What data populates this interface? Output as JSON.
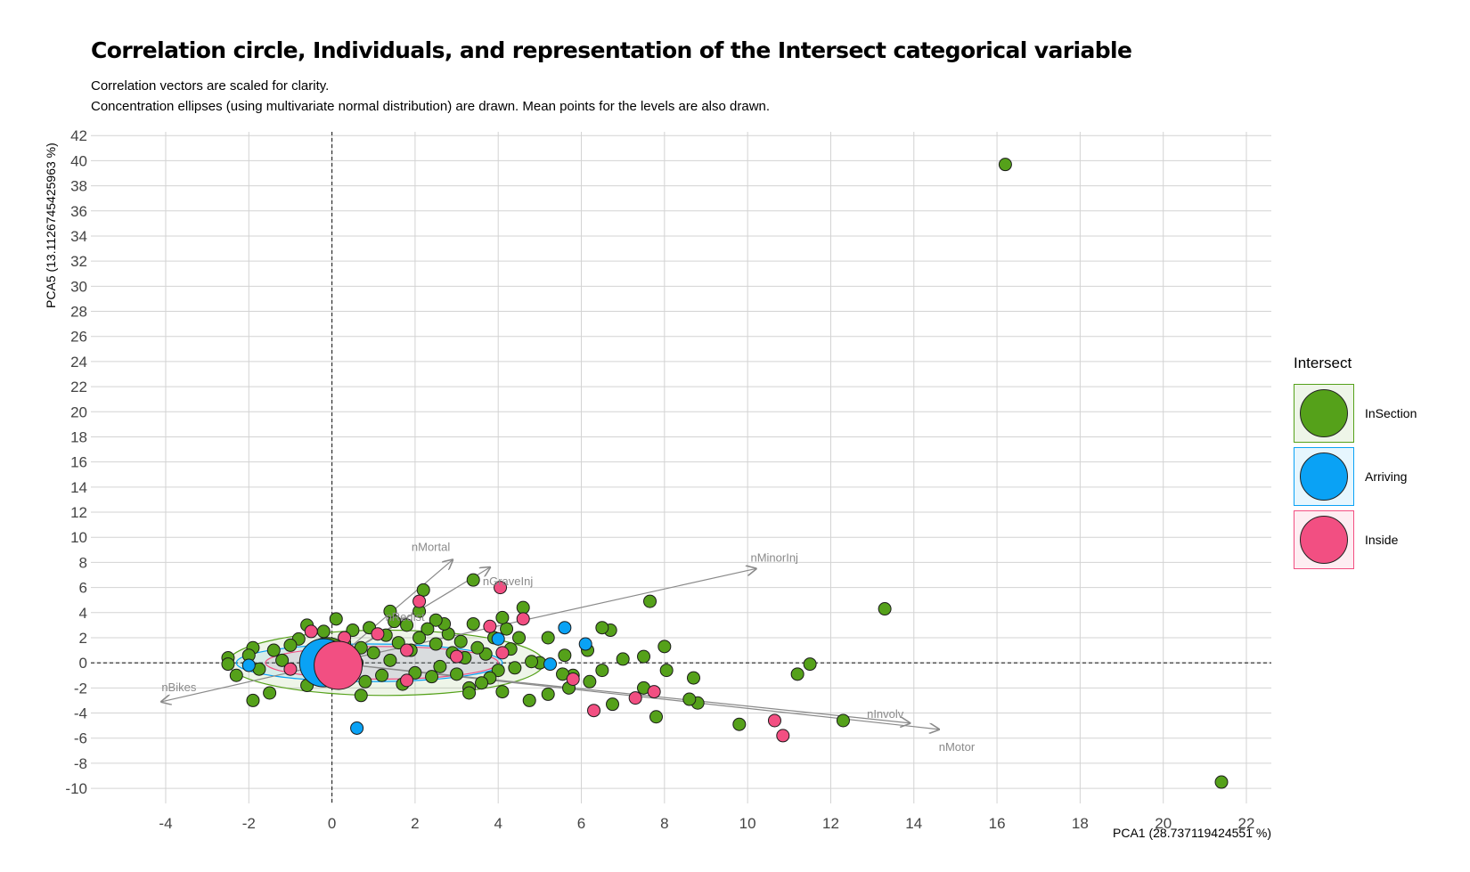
{
  "chart_data": {
    "type": "scatter",
    "title": "Correlation circle, Individuals, and representation of the Intersect categorical variable",
    "subtitle": [
      "Correlation vectors are scaled for clarity.",
      "Concentration ellipses (using multivariate normal distribution) are drawn. Mean points for the levels are also drawn."
    ],
    "xlabel": "PCA1 (28.737119424551 %)",
    "ylabel": "PCA5 (13.1126745425963 %)",
    "xlim": [
      -5.8,
      22.6
    ],
    "ylim": [
      -11.2,
      42.3
    ],
    "xticks": [
      -4,
      -2,
      0,
      2,
      4,
      6,
      8,
      10,
      12,
      14,
      16,
      18,
      20,
      22
    ],
    "yticks": [
      -10,
      -8,
      -6,
      -4,
      -2,
      0,
      2,
      4,
      6,
      8,
      10,
      12,
      14,
      16,
      18,
      20,
      22,
      24,
      26,
      28,
      30,
      32,
      34,
      36,
      38,
      40,
      42
    ],
    "grid": true,
    "reference_lines": {
      "x": 0,
      "y": 0,
      "style": "dashed"
    },
    "legend": {
      "title": "Intersect",
      "position": "right",
      "entries": [
        {
          "label": "InSection",
          "color": "#55a11a"
        },
        {
          "label": "Arriving",
          "color": "#0aa2f5"
        },
        {
          "label": "Inside",
          "color": "#f24f82"
        }
      ]
    },
    "variables": [
      {
        "name": "nBikes",
        "x": -4.1,
        "y": -3.1
      },
      {
        "name": "nMortal",
        "x": 2.9,
        "y": 8.2
      },
      {
        "name": "nGraveInj",
        "x": 3.8,
        "y": 7.6
      },
      {
        "name": "nRedist",
        "x": 1.8,
        "y": 3.5
      },
      {
        "name": "nMinorInj",
        "x": 10.2,
        "y": 7.5
      },
      {
        "name": "nInvolv",
        "x": 13.9,
        "y": -4.8
      },
      {
        "name": "nMotor",
        "x": 14.6,
        "y": -5.3
      }
    ],
    "ellipses": [
      {
        "group": "InSection",
        "cx": 1.3,
        "cy": 0.0,
        "rx": 3.8,
        "ry": 2.6
      },
      {
        "group": "Arriving",
        "cx": 0.9,
        "cy": 0.0,
        "rx": 3.2,
        "ry": 1.5
      },
      {
        "group": "Inside",
        "cx": 1.2,
        "cy": 0.0,
        "rx": 2.8,
        "ry": 1.3
      }
    ],
    "group_means": [
      {
        "group": "InSection",
        "x": -0.1,
        "y": 0.1
      },
      {
        "group": "Arriving",
        "x": -0.2,
        "y": 0.0
      },
      {
        "group": "Inside",
        "x": 0.15,
        "y": -0.2
      }
    ],
    "series": [
      {
        "name": "InSection",
        "color": "#55a11a",
        "points": [
          [
            16.2,
            39.7
          ],
          [
            21.4,
            -9.5
          ],
          [
            13.3,
            4.3
          ],
          [
            12.3,
            -4.6
          ],
          [
            11.5,
            -0.1
          ],
          [
            11.2,
            -0.9
          ],
          [
            9.8,
            -4.9
          ],
          [
            8.8,
            -3.2
          ],
          [
            8.7,
            -1.2
          ],
          [
            8.6,
            -2.9
          ],
          [
            8.0,
            1.3
          ],
          [
            8.05,
            -0.6
          ],
          [
            7.8,
            -4.3
          ],
          [
            7.65,
            4.9
          ],
          [
            7.5,
            -2.0
          ],
          [
            7.5,
            0.5
          ],
          [
            7.0,
            0.3
          ],
          [
            6.7,
            2.6
          ],
          [
            6.75,
            -3.3
          ],
          [
            6.5,
            2.8
          ],
          [
            6.5,
            -0.6
          ],
          [
            6.2,
            -1.5
          ],
          [
            6.15,
            1.0
          ],
          [
            5.8,
            -1.0
          ],
          [
            5.7,
            -2.0
          ],
          [
            5.55,
            -0.9
          ],
          [
            5.6,
            0.6
          ],
          [
            5.2,
            2.0
          ],
          [
            5.2,
            -2.5
          ],
          [
            5.0,
            0.0
          ],
          [
            4.8,
            0.1
          ],
          [
            4.75,
            -3.0
          ],
          [
            4.6,
            4.4
          ],
          [
            4.5,
            2.0
          ],
          [
            4.4,
            -0.4
          ],
          [
            4.3,
            1.1
          ],
          [
            4.2,
            2.7
          ],
          [
            4.1,
            3.6
          ],
          [
            4.1,
            -2.3
          ],
          [
            4.0,
            -0.6
          ],
          [
            3.9,
            2.0
          ],
          [
            3.8,
            -1.2
          ],
          [
            3.7,
            0.7
          ],
          [
            3.6,
            -1.6
          ],
          [
            3.5,
            1.2
          ],
          [
            3.4,
            6.6
          ],
          [
            3.4,
            3.1
          ],
          [
            3.3,
            -2.0
          ],
          [
            3.3,
            -2.4
          ],
          [
            3.2,
            0.4
          ],
          [
            3.1,
            1.7
          ],
          [
            3.0,
            -0.9
          ],
          [
            2.9,
            0.8
          ],
          [
            2.8,
            2.3
          ],
          [
            2.7,
            3.1
          ],
          [
            2.6,
            -0.3
          ],
          [
            2.5,
            3.4
          ],
          [
            2.5,
            1.5
          ],
          [
            2.4,
            -1.1
          ],
          [
            2.3,
            2.7
          ],
          [
            2.2,
            5.8
          ],
          [
            2.1,
            4.1
          ],
          [
            2.1,
            2.0
          ],
          [
            2.0,
            -0.8
          ],
          [
            1.9,
            1.0
          ],
          [
            1.8,
            3.0
          ],
          [
            1.7,
            -1.7
          ],
          [
            1.6,
            1.6
          ],
          [
            1.5,
            3.3
          ],
          [
            1.4,
            0.2
          ],
          [
            1.4,
            4.1
          ],
          [
            1.3,
            2.2
          ],
          [
            1.2,
            -1.0
          ],
          [
            1.0,
            0.8
          ],
          [
            0.9,
            2.8
          ],
          [
            0.8,
            -1.5
          ],
          [
            0.7,
            -2.6
          ],
          [
            0.7,
            1.2
          ],
          [
            0.6,
            0.0
          ],
          [
            0.5,
            2.6
          ],
          [
            0.4,
            -0.8
          ],
          [
            0.3,
            1.6
          ],
          [
            0.1,
            3.5
          ],
          [
            0.0,
            1.4
          ],
          [
            -0.2,
            2.5
          ],
          [
            -0.35,
            0.7
          ],
          [
            -0.6,
            3.0
          ],
          [
            -0.6,
            -1.8
          ],
          [
            -0.8,
            1.9
          ],
          [
            -1.0,
            1.4
          ],
          [
            -1.2,
            0.2
          ],
          [
            -1.4,
            1.0
          ],
          [
            -1.5,
            -2.4
          ],
          [
            -1.75,
            -0.5
          ],
          [
            -1.9,
            -3.0
          ],
          [
            -1.9,
            1.2
          ],
          [
            -2.0,
            0.6
          ],
          [
            -2.3,
            -1.0
          ],
          [
            -2.5,
            0.4
          ],
          [
            -2.5,
            -0.1
          ]
        ]
      },
      {
        "name": "Arriving",
        "color": "#0aa2f5",
        "points": [
          [
            0.6,
            -5.2
          ],
          [
            -2.0,
            -0.2
          ],
          [
            4.0,
            1.9
          ],
          [
            5.25,
            -0.1
          ],
          [
            5.6,
            2.8
          ],
          [
            6.1,
            1.5
          ]
        ]
      },
      {
        "name": "Inside",
        "color": "#f24f82",
        "points": [
          [
            10.85,
            -5.8
          ],
          [
            10.65,
            -4.6
          ],
          [
            7.75,
            -2.3
          ],
          [
            7.3,
            -2.8
          ],
          [
            6.3,
            -3.8
          ],
          [
            5.8,
            -1.3
          ],
          [
            4.6,
            3.5
          ],
          [
            4.1,
            0.8
          ],
          [
            4.05,
            6.0
          ],
          [
            3.8,
            2.9
          ],
          [
            3.0,
            0.5
          ],
          [
            2.1,
            4.9
          ],
          [
            1.8,
            -1.4
          ],
          [
            1.8,
            1.0
          ],
          [
            1.1,
            2.3
          ],
          [
            0.3,
            2.0
          ],
          [
            -1.0,
            -0.5
          ],
          [
            -0.5,
            2.5
          ]
        ]
      }
    ]
  }
}
